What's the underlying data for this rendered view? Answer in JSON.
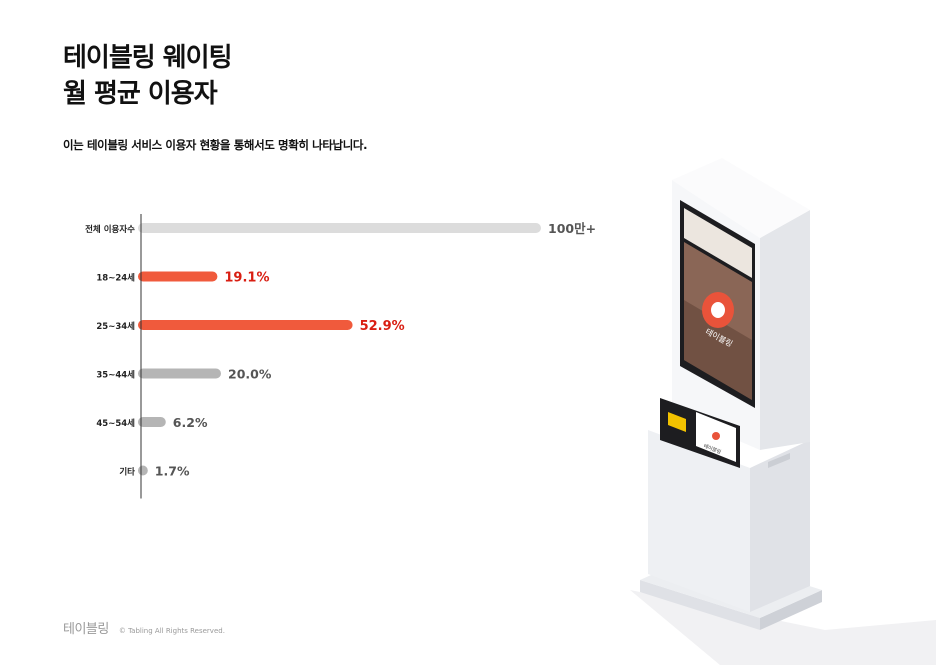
{
  "header": {
    "title_line1": "테이블링 웨이팅",
    "title_line2": "월 평균 이용자",
    "subtitle": "이는 테이블링 서비스 이용자 현황을 통해서도 명확히 나타납니다."
  },
  "colors": {
    "total_bar": "#dcdcdc",
    "highlight_bar": "#f05a3c",
    "highlight_text": "#d91e12",
    "normal_bar": "#b5b5b5",
    "normal_text": "#555555",
    "axis": "#333333"
  },
  "chart_data": {
    "type": "bar",
    "orientation": "horizontal",
    "categories": [
      "전체 이용자수",
      "18~24세",
      "25~34세",
      "35~44세",
      "45~54세",
      "기타"
    ],
    "values": [
      100,
      19.1,
      52.9,
      20.0,
      6.2,
      1.7
    ],
    "labels": [
      "100만+",
      "19.1%",
      "52.9%",
      "20.0%",
      "6.2%",
      "1.7%"
    ],
    "highlight": [
      false,
      true,
      true,
      false,
      false,
      false
    ],
    "kind": [
      "total",
      "pct",
      "pct",
      "pct",
      "pct",
      "pct"
    ],
    "xlim": [
      0,
      100
    ],
    "grid": false
  },
  "kiosk": {
    "brand_label": "테이블링",
    "ticket_label": "테이블링",
    "icons": [
      "kiosk-icon"
    ]
  },
  "footer": {
    "brand": "테이블링",
    "copyright": "© Tabling All Rights Reserved."
  }
}
